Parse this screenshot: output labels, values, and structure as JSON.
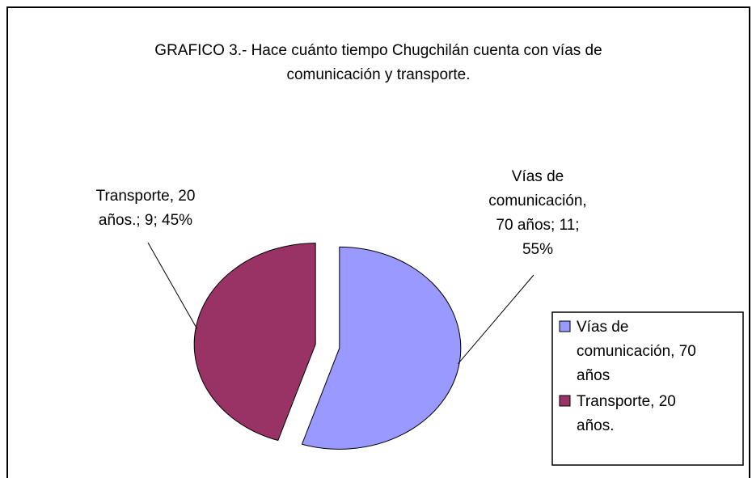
{
  "chart_data": {
    "type": "pie",
    "title": "GRAFICO 3.- Hace cuánto tiempo Chugchilán cuenta con vías de comunicación y transporte.",
    "categories": [
      "Vías de comunicación, 70 años",
      "Transporte, 20 años."
    ],
    "values": [
      11,
      9
    ],
    "value_labels": [
      "Vías de comunicación, 70 años; 11; 55%",
      "Transporte, 20 años.; 9; 45%"
    ],
    "colors": [
      "#9999ff",
      "#993366"
    ],
    "legend": "right"
  }
}
